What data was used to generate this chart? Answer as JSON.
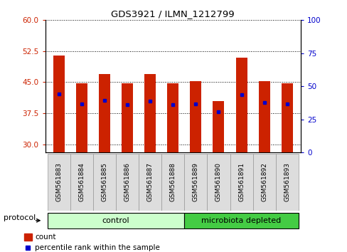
{
  "title": "GDS3921 / ILMN_1212799",
  "samples": [
    "GSM561883",
    "GSM561884",
    "GSM561885",
    "GSM561886",
    "GSM561887",
    "GSM561888",
    "GSM561889",
    "GSM561890",
    "GSM561891",
    "GSM561892",
    "GSM561893"
  ],
  "bar_heights": [
    51.5,
    44.8,
    47.0,
    44.8,
    47.0,
    44.8,
    45.2,
    40.5,
    51.0,
    45.2,
    44.8
  ],
  "percentile_ranks": [
    44.0,
    36.5,
    39.5,
    36.2,
    39.0,
    36.2,
    36.5,
    31.0,
    43.5,
    37.5,
    36.5
  ],
  "ylim_left": [
    28,
    60
  ],
  "ylim_right": [
    0,
    100
  ],
  "yticks_left": [
    30,
    37.5,
    45,
    52.5,
    60
  ],
  "yticks_right": [
    0,
    25,
    50,
    75,
    100
  ],
  "bar_color": "#cc2200",
  "marker_color": "#0000cc",
  "bar_width": 0.5,
  "control_color": "#ccffcc",
  "depleted_color": "#44cc44",
  "control_label": "control",
  "depleted_label": "microbiota depleted",
  "group_label": "protocol",
  "legend_count": "count",
  "legend_percentile": "percentile rank within the sample",
  "background_color": "#ffffff",
  "tick_label_color_left": "#cc2200",
  "tick_label_color_right": "#0000cc"
}
